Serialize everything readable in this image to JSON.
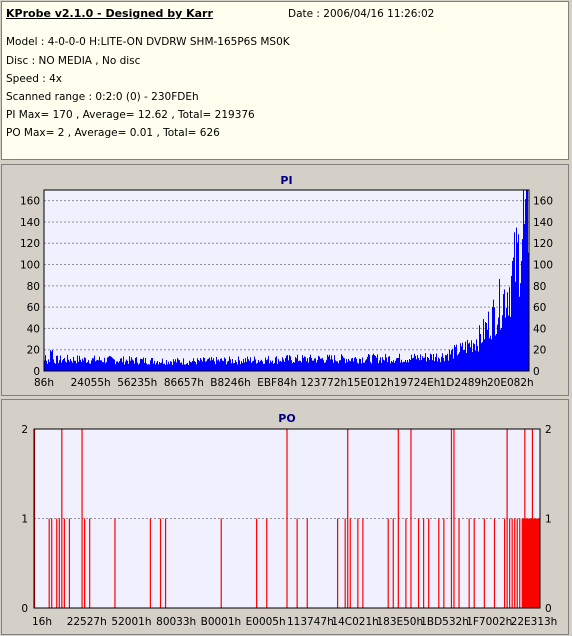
{
  "header": {
    "title": "KProbe v2.1.0 - Designed by Karr",
    "date": "Date : 2006/04/16 11:26:02",
    "lines": [
      "Model : 4-0-0-0 H:LITE-ON DVDRW SHM-165P6S MS0K",
      "Disc : NO MEDIA , No disc",
      "Speed : 4x",
      "Scanned range : 0:2:0 (0) - 230FDEh",
      "PI Max= 170 , Average= 12.62 , Total= 219376",
      "PO Max= 2 , Average= 0.01 , Total= 626"
    ]
  },
  "colors": {
    "plot_bg": "#f0f0ff",
    "bar": "#0000ff",
    "po_bar": "#ff0000",
    "grid": "#909090"
  },
  "chart_data": [
    {
      "type": "bar",
      "title": "PI",
      "xlabels": [
        "86h",
        "24055h",
        "56235h",
        "86657h",
        "B8246h",
        "EBF84h",
        "123772h",
        "15E012h",
        "19724Eh",
        "1D2489h",
        "20E082h"
      ],
      "yticks": [
        0,
        20,
        40,
        60,
        80,
        100,
        120,
        140,
        160
      ],
      "ylim": [
        0,
        170
      ],
      "grid": true,
      "profile": {
        "baseline_points": [
          [
            0,
            10
          ],
          [
            0.05,
            11
          ],
          [
            0.3,
            9
          ],
          [
            0.5,
            11
          ],
          [
            0.75,
            12
          ],
          [
            0.82,
            14
          ],
          [
            0.86,
            20
          ],
          [
            0.9,
            32
          ],
          [
            0.93,
            55
          ],
          [
            0.96,
            80
          ],
          [
            0.98,
            115
          ],
          [
            1.0,
            145
          ]
        ],
        "max": 170
      }
    },
    {
      "type": "bar",
      "title": "PO",
      "xlabels": [
        "16h",
        "22527h",
        "52001h",
        "80033h",
        "B0001h",
        "E0005h",
        "113747h",
        "14C021h",
        "183E50h",
        "1BD532h",
        "1F7002h",
        "22E313h"
      ],
      "yticks": [
        0,
        1,
        2
      ],
      "ylim": [
        0,
        2
      ],
      "grid": true,
      "spikes_value2": [
        0.001,
        0.055,
        0.095,
        0.5,
        0.62,
        0.72,
        0.745,
        0.825,
        0.83,
        0.935,
        0.97,
        0.985
      ],
      "spikes_value1": [
        0.03,
        0.035,
        0.045,
        0.05,
        0.06,
        0.07,
        0.1,
        0.11,
        0.16,
        0.23,
        0.25,
        0.26,
        0.37,
        0.44,
        0.46,
        0.52,
        0.54,
        0.6,
        0.615,
        0.625,
        0.64,
        0.65,
        0.7,
        0.71,
        0.735,
        0.76,
        0.77,
        0.78,
        0.8,
        0.81,
        0.84,
        0.86,
        0.87,
        0.89,
        0.91,
        0.93,
        0.94,
        0.945,
        0.95,
        0.955,
        0.96,
        0.965,
        0.975,
        0.98,
        0.99,
        0.995
      ]
    }
  ]
}
